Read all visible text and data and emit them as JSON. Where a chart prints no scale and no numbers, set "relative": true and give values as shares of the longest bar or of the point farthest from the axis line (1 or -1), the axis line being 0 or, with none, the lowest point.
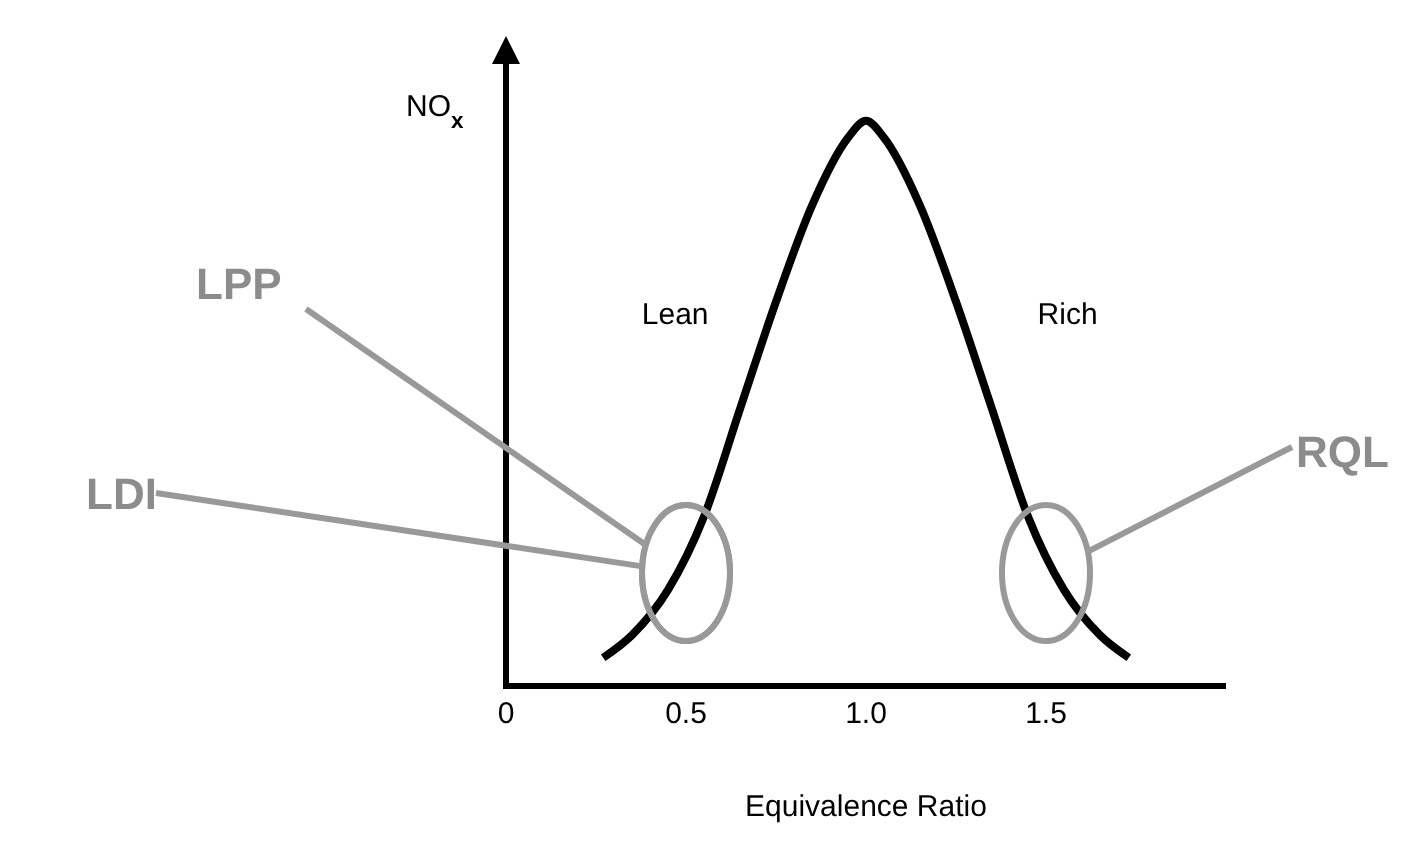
{
  "chart_data": {
    "type": "line",
    "relative": true,
    "xlabel": "Equivalence Ratio",
    "ylabel": "NO$_{x}$",
    "xlim": [
      0,
      2
    ],
    "xticks": [
      0,
      0.5,
      {
        "value": 1,
        "label": "1.0"
      },
      1.5
    ],
    "x": [
      0.27,
      0.35,
      0.45,
      0.55,
      0.65,
      0.75,
      0.85,
      0.95,
      1.0,
      1.05,
      1.15,
      1.25,
      1.35,
      1.45,
      1.55,
      1.65,
      1.73
    ],
    "series": [
      {
        "color": "#000000",
        "values": [
          0.05,
          0.09,
          0.17,
          0.3,
          0.49,
          0.68,
          0.85,
          0.97,
          1,
          0.97,
          0.85,
          0.68,
          0.49,
          0.3,
          0.17,
          0.09,
          0.05
        ]
      }
    ],
    "annotations": [
      "Lean",
      "Rich",
      "LPP",
      "LDI",
      "RQL"
    ],
    "marker": "none",
    "line_style": "solid"
  }
}
